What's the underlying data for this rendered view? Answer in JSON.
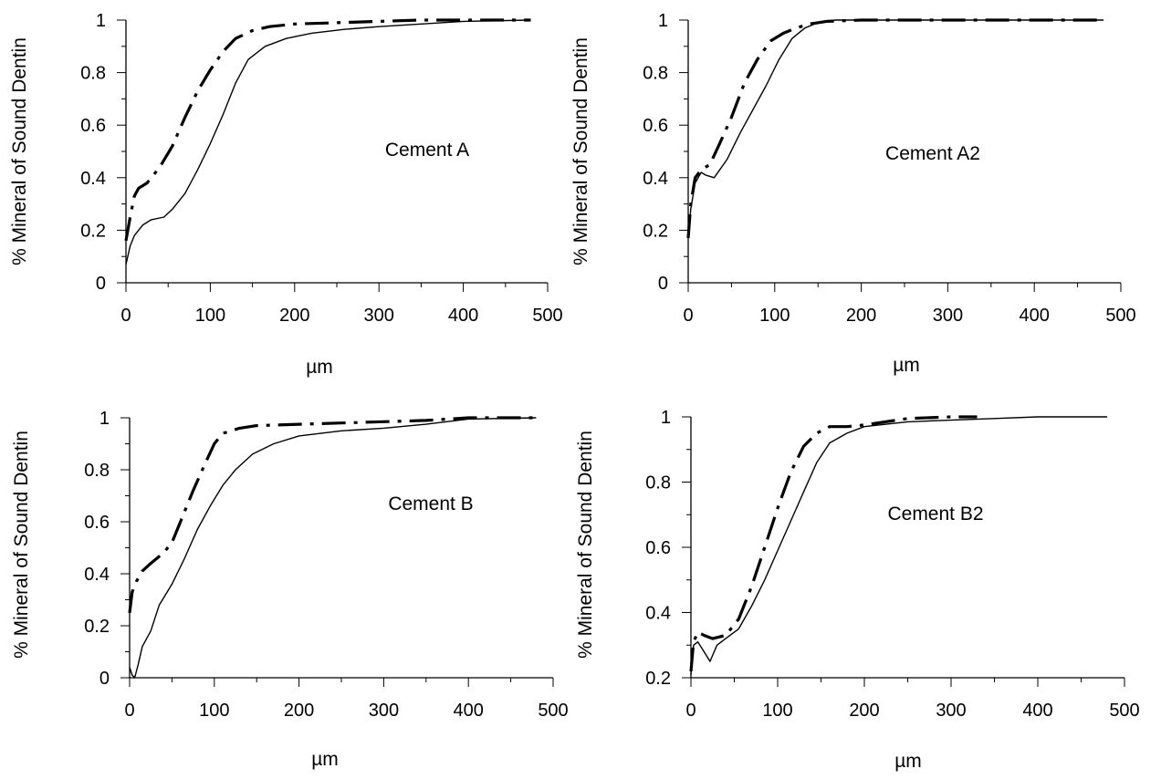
{
  "chart_data": [
    {
      "type": "line",
      "annotation": "Cement A",
      "xlabel": "µm",
      "ylabel": "% Mineral of Sound Dentin",
      "xlim": [
        0,
        500
      ],
      "ylim": [
        0,
        1
      ],
      "xticks": [
        "0",
        "100",
        "200",
        "300",
        "400",
        "500"
      ],
      "yticks": [
        "0",
        "0.2",
        "0.4",
        "0.6",
        "0.8",
        "1"
      ],
      "grid": false,
      "series": [
        {
          "style": "dash-dot",
          "x": [
            0,
            5,
            10,
            15,
            25,
            40,
            55,
            70,
            85,
            100,
            115,
            130,
            150,
            170,
            200,
            250,
            300,
            350,
            400,
            480
          ],
          "y": [
            0.16,
            0.25,
            0.33,
            0.36,
            0.38,
            0.44,
            0.52,
            0.63,
            0.73,
            0.81,
            0.88,
            0.93,
            0.96,
            0.975,
            0.985,
            0.99,
            0.995,
            1.0,
            1.0,
            1.0
          ]
        },
        {
          "style": "solid",
          "x": [
            0,
            5,
            10,
            20,
            30,
            45,
            55,
            70,
            85,
            100,
            115,
            130,
            145,
            165,
            190,
            220,
            260,
            300,
            350,
            400,
            480
          ],
          "y": [
            0.07,
            0.14,
            0.18,
            0.22,
            0.24,
            0.25,
            0.28,
            0.34,
            0.43,
            0.53,
            0.64,
            0.76,
            0.85,
            0.9,
            0.93,
            0.95,
            0.965,
            0.975,
            0.985,
            0.995,
            1.0
          ]
        }
      ]
    },
    {
      "type": "line",
      "annotation": "Cement A2",
      "xlabel": "µm",
      "ylabel": "% Mineral of Sound Dentin",
      "xlim": [
        0,
        500
      ],
      "ylim": [
        0,
        1
      ],
      "xticks": [
        "0",
        "100",
        "200",
        "300",
        "400",
        "500"
      ],
      "yticks": [
        "0",
        "0.2",
        "0.4",
        "0.6",
        "0.8",
        "1"
      ],
      "grid": false,
      "series": [
        {
          "style": "dash-dot",
          "x": [
            0,
            3,
            8,
            15,
            25,
            35,
            50,
            65,
            80,
            95,
            110,
            125,
            140,
            160,
            200,
            250,
            300,
            400,
            480
          ],
          "y": [
            0.17,
            0.3,
            0.4,
            0.43,
            0.45,
            0.52,
            0.63,
            0.76,
            0.85,
            0.92,
            0.95,
            0.97,
            0.985,
            0.995,
            1.0,
            1.0,
            1.0,
            1.0,
            1.0
          ]
        },
        {
          "style": "solid",
          "x": [
            0,
            3,
            8,
            15,
            20,
            30,
            45,
            60,
            75,
            90,
            105,
            120,
            135,
            150,
            170,
            200,
            250,
            300,
            400,
            480
          ],
          "y": [
            0.17,
            0.28,
            0.38,
            0.42,
            0.41,
            0.4,
            0.47,
            0.57,
            0.66,
            0.75,
            0.85,
            0.93,
            0.97,
            0.99,
            1.0,
            1.0,
            1.0,
            1.0,
            1.0,
            1.0
          ]
        }
      ]
    },
    {
      "type": "line",
      "annotation": "Cement B",
      "xlabel": "µm",
      "ylabel": "% Mineral of Sound Dentin",
      "xlim": [
        0,
        500
      ],
      "ylim": [
        0,
        1
      ],
      "xticks": [
        "0",
        "100",
        "200",
        "300",
        "400",
        "500"
      ],
      "yticks": [
        "0",
        "0.2",
        "0.4",
        "0.6",
        "0.8",
        "1"
      ],
      "grid": false,
      "series": [
        {
          "style": "dash-dot",
          "x": [
            0,
            3,
            8,
            15,
            25,
            40,
            50,
            60,
            75,
            90,
            100,
            110,
            130,
            150,
            200,
            250,
            300,
            350,
            400,
            480
          ],
          "y": [
            0.25,
            0.33,
            0.37,
            0.41,
            0.44,
            0.48,
            0.52,
            0.6,
            0.72,
            0.83,
            0.9,
            0.94,
            0.96,
            0.97,
            0.975,
            0.98,
            0.985,
            0.99,
            1.0,
            1.0
          ]
        },
        {
          "style": "solid",
          "x": [
            0,
            3,
            6,
            10,
            15,
            25,
            35,
            50,
            65,
            80,
            95,
            110,
            125,
            145,
            170,
            200,
            250,
            300,
            350,
            400,
            480
          ],
          "y": [
            0.04,
            0.01,
            0.0,
            0.05,
            0.12,
            0.18,
            0.28,
            0.36,
            0.46,
            0.57,
            0.66,
            0.74,
            0.8,
            0.86,
            0.9,
            0.93,
            0.95,
            0.96,
            0.975,
            0.995,
            1.0
          ]
        }
      ]
    },
    {
      "type": "line",
      "annotation": "Cement B2",
      "xlabel": "µm",
      "ylabel": "% Mineral of Sound Dentin",
      "xlim": [
        0,
        500
      ],
      "ylim": [
        0.2,
        1
      ],
      "xticks": [
        "0",
        "100",
        "200",
        "300",
        "400",
        "500"
      ],
      "yticks": [
        "0.2",
        "0.4",
        "0.6",
        "0.8",
        "1"
      ],
      "grid": false,
      "series": [
        {
          "style": "dash-dot",
          "x": [
            0,
            3,
            8,
            15,
            25,
            40,
            55,
            70,
            85,
            100,
            115,
            130,
            145,
            160,
            180,
            200,
            250,
            300,
            330
          ],
          "y": [
            0.22,
            0.31,
            0.34,
            0.33,
            0.32,
            0.33,
            0.38,
            0.48,
            0.6,
            0.72,
            0.83,
            0.91,
            0.95,
            0.97,
            0.97,
            0.975,
            0.995,
            1.0,
            1.0
          ]
        },
        {
          "style": "solid",
          "x": [
            0,
            3,
            8,
            15,
            22,
            30,
            40,
            55,
            70,
            85,
            100,
            115,
            130,
            145,
            160,
            180,
            200,
            250,
            300,
            350,
            400,
            480
          ],
          "y": [
            0.21,
            0.3,
            0.31,
            0.28,
            0.25,
            0.3,
            0.32,
            0.35,
            0.42,
            0.5,
            0.59,
            0.68,
            0.77,
            0.86,
            0.92,
            0.95,
            0.97,
            0.985,
            0.99,
            0.995,
            1.0,
            1.0
          ]
        }
      ]
    }
  ]
}
